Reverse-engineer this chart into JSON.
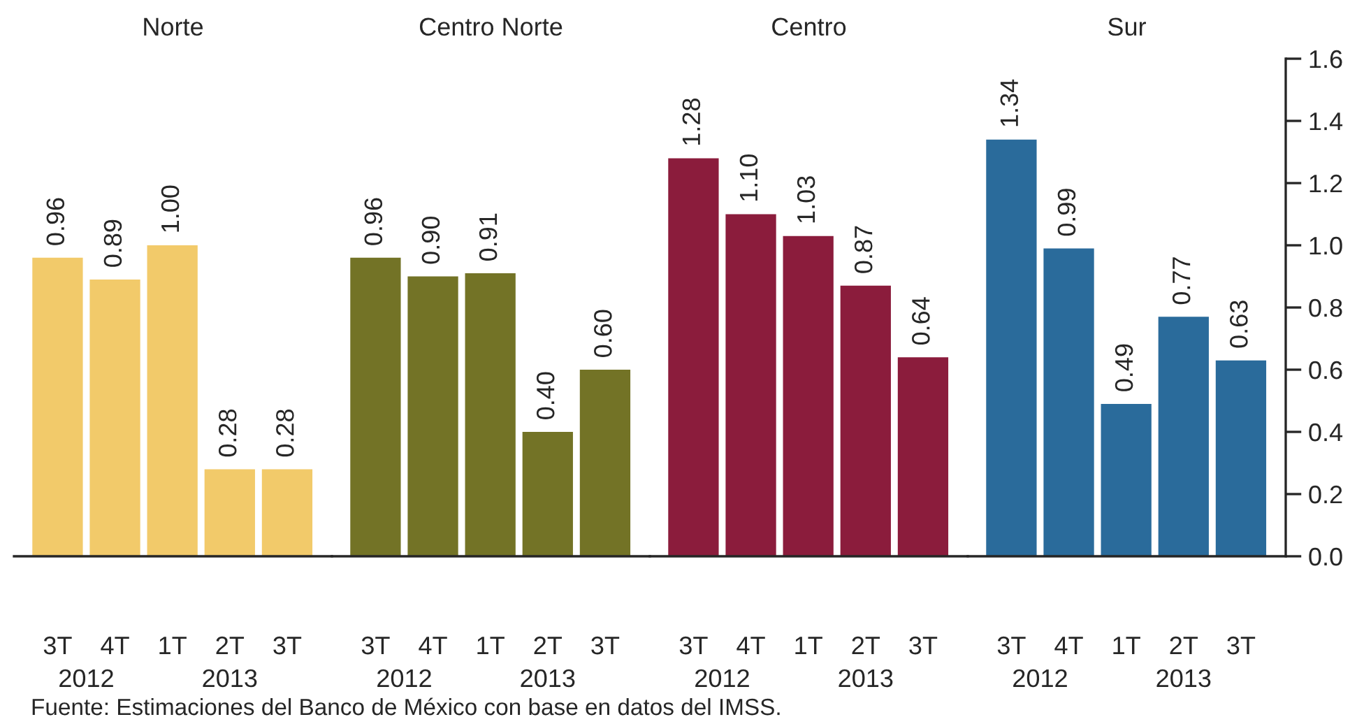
{
  "chart_data": [
    {
      "type": "bar",
      "title": "Norte",
      "categories": [
        "3T",
        "4T",
        "1T",
        "2T",
        "3T"
      ],
      "values": [
        0.96,
        0.89,
        1.0,
        0.28,
        0.28
      ],
      "value_labels": [
        "0.96",
        "0.89",
        "1.00",
        "0.28",
        "0.28"
      ],
      "color": "#f2ca6a",
      "ylim": [
        0,
        1.6
      ],
      "tick_labels": "x",
      "grid": false,
      "annotations": [
        "2012",
        "2013",
        "Fuente: Estimaciones del Banco de México con base en datos del IMSS."
      ]
    },
    {
      "type": "bar",
      "title": "Centro Norte",
      "categories": [
        "3T",
        "4T",
        "1T",
        "2T",
        "3T"
      ],
      "values": [
        0.96,
        0.9,
        0.91,
        0.4,
        0.6
      ],
      "value_labels": [
        "0.96",
        "0.90",
        "0.91",
        "0.40",
        "0.60"
      ],
      "color": "#737326",
      "ylim": [
        0,
        1.6
      ],
      "tick_labels": "x",
      "grid": false,
      "annotations": [
        "2012",
        "2013"
      ]
    },
    {
      "type": "bar",
      "title": "Centro",
      "categories": [
        "3T",
        "4T",
        "1T",
        "2T",
        "3T"
      ],
      "values": [
        1.28,
        1.1,
        1.03,
        0.87,
        0.64
      ],
      "value_labels": [
        "1.28",
        "1.10",
        "1.03",
        "0.87",
        "0.64"
      ],
      "color": "#8b1c3c",
      "ylim": [
        0,
        1.6
      ],
      "tick_labels": "x",
      "grid": false,
      "annotations": [
        "2012",
        "2013"
      ]
    },
    {
      "type": "bar",
      "title": "Sur",
      "categories": [
        "3T",
        "4T",
        "1T",
        "2T",
        "3T"
      ],
      "values": [
        1.34,
        0.99,
        0.49,
        0.77,
        0.63
      ],
      "value_labels": [
        "1.34",
        "0.99",
        "0.49",
        "0.77",
        "0.63"
      ],
      "color": "#2a6b9b",
      "ylim": [
        0,
        1.6
      ],
      "yticks": [
        {
          "value": 0,
          "label": "0.0"
        },
        {
          "value": 0.2,
          "label": "0.2"
        },
        {
          "value": 0.4,
          "label": "0.4"
        },
        {
          "value": 0.6,
          "label": "0.6"
        },
        {
          "value": 0.8,
          "label": "0.8"
        },
        {
          "value": 1.0,
          "label": "1.0"
        },
        {
          "value": 1.2,
          "label": "1.2"
        },
        {
          "value": 1.4,
          "label": "1.4"
        },
        {
          "value": 1.6,
          "label": "1.6"
        }
      ],
      "grid": false,
      "annotations": [
        "2012",
        "2013"
      ]
    }
  ]
}
